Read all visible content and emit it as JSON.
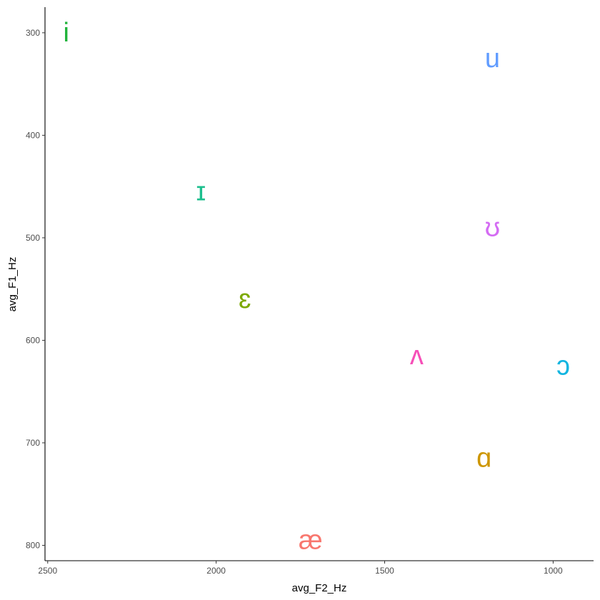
{
  "chart_data": {
    "type": "scatter",
    "mark": "text",
    "xlabel": "avg_F2_Hz",
    "ylabel": "avg_F1_Hz",
    "x_reversed": true,
    "y_reversed": true,
    "xlim": [
      2508,
      880
    ],
    "ylim": [
      275,
      815
    ],
    "x_ticks": [
      2500,
      2000,
      1500,
      1000
    ],
    "y_ticks": [
      300,
      400,
      500,
      600,
      700,
      800
    ],
    "grid": false,
    "legend": "none",
    "points": [
      {
        "label": "i",
        "x": 2445,
        "y": 300,
        "color": "#1fb33a"
      },
      {
        "label": "u",
        "x": 1180,
        "y": 325,
        "color": "#619cff"
      },
      {
        "label": "ɪ",
        "x": 2045,
        "y": 455,
        "color": "#1dbf8e"
      },
      {
        "label": "ʊ",
        "x": 1180,
        "y": 490,
        "color": "#d46cf3"
      },
      {
        "label": "ɛ",
        "x": 1915,
        "y": 560,
        "color": "#7ca900"
      },
      {
        "label": "ʌ",
        "x": 1405,
        "y": 615,
        "color": "#f64fb8"
      },
      {
        "label": "ɔ",
        "x": 970,
        "y": 625,
        "color": "#11b5e0"
      },
      {
        "label": "ɑ",
        "x": 1205,
        "y": 715,
        "color": "#cd9600"
      },
      {
        "label": "æ",
        "x": 1720,
        "y": 795,
        "color": "#f8766d"
      }
    ]
  }
}
